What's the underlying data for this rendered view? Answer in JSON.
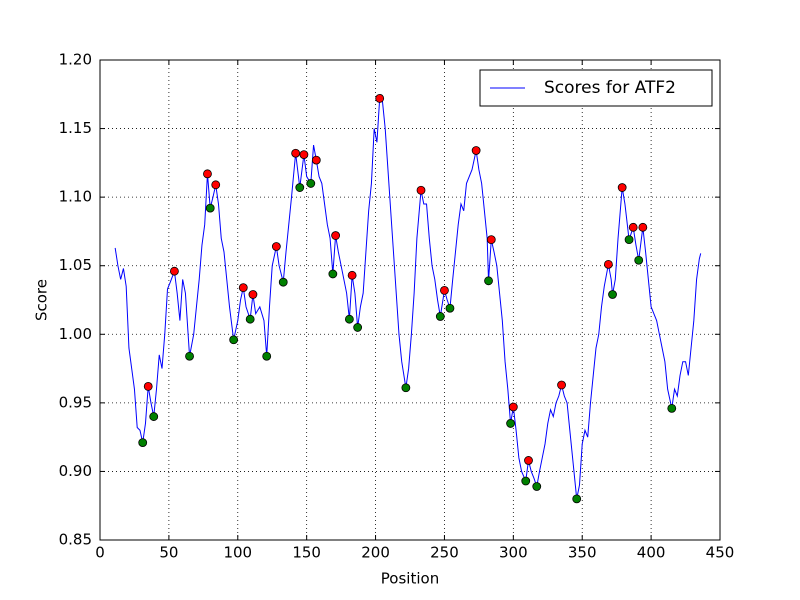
{
  "chart_data": {
    "type": "line",
    "x_label": "Position",
    "y_label": "Score",
    "xlim": [
      0,
      450
    ],
    "ylim": [
      0.85,
      1.2
    ],
    "xticks": [
      0,
      50,
      100,
      150,
      200,
      250,
      300,
      350,
      400,
      450
    ],
    "yticks": [
      0.85,
      {
        "value": 0.9,
        "label": "0.90"
      },
      0.95,
      {
        "value": 1.0,
        "label": "1.00"
      },
      1.05,
      {
        "value": 1.1,
        "label": "1.10"
      },
      1.15,
      {
        "value": 1.2,
        "label": "1.20"
      }
    ],
    "grid": true,
    "legend": "upper right",
    "series": [
      {
        "name": "Scores for ATF2",
        "color": "#0000ff",
        "style": "line",
        "x": [
          11,
          13,
          15,
          17,
          19,
          21,
          23,
          25,
          27,
          29,
          31,
          33,
          35,
          37,
          39,
          41,
          43,
          45,
          47,
          49,
          51,
          54,
          56,
          58,
          60,
          62,
          65,
          68,
          70,
          72,
          74,
          76,
          78,
          80,
          82,
          84,
          86,
          88,
          90,
          92,
          94,
          97,
          100,
          102,
          104,
          106,
          109,
          111,
          113,
          116,
          119,
          121,
          123,
          125,
          128,
          130,
          133,
          135,
          137,
          139,
          142,
          145,
          148,
          150,
          153,
          155,
          157,
          159,
          161,
          163,
          165,
          167,
          169,
          171,
          173,
          175,
          177,
          179,
          181,
          183,
          185,
          187,
          189,
          191,
          193,
          195,
          197,
          199,
          201,
          203,
          205,
          207,
          209,
          211,
          213,
          215,
          217,
          219,
          222,
          224,
          226,
          228,
          230,
          233,
          235,
          237,
          239,
          241,
          243,
          245,
          247,
          250,
          252,
          254,
          256,
          258,
          260,
          262,
          264,
          266,
          268,
          270,
          273,
          275,
          277,
          279,
          281,
          282,
          284,
          286,
          288,
          290,
          292,
          294,
          296,
          298,
          300,
          302,
          304,
          306,
          309,
          311,
          313,
          315,
          317,
          319,
          321,
          323,
          325,
          327,
          329,
          331,
          333,
          335,
          337,
          339,
          341,
          343,
          346,
          348,
          350,
          352,
          354,
          356,
          358,
          360,
          362,
          364,
          366,
          369,
          371,
          372,
          374,
          376,
          379,
          381,
          384,
          387,
          389,
          391,
          394,
          396,
          398,
          400,
          402,
          404,
          406,
          408,
          410,
          412,
          415,
          417,
          419,
          421,
          423,
          425,
          427,
          429,
          431,
          433,
          435,
          436
        ],
        "values": [
          1.063,
          1.05,
          1.04,
          1.048,
          1.035,
          0.99,
          0.975,
          0.96,
          0.932,
          0.93,
          0.921,
          0.935,
          0.962,
          0.95,
          0.94,
          0.96,
          0.985,
          0.975,
          1.0,
          1.033,
          1.038,
          1.046,
          1.03,
          1.01,
          1.04,
          1.03,
          0.984,
          1.0,
          1.02,
          1.04,
          1.065,
          1.08,
          1.117,
          1.092,
          1.1,
          1.109,
          1.095,
          1.07,
          1.06,
          1.04,
          1.02,
          0.996,
          1.01,
          1.025,
          1.034,
          1.02,
          1.011,
          1.029,
          1.015,
          1.02,
          1.01,
          0.984,
          1.02,
          1.05,
          1.064,
          1.05,
          1.038,
          1.06,
          1.08,
          1.1,
          1.132,
          1.107,
          1.131,
          1.115,
          1.11,
          1.138,
          1.127,
          1.115,
          1.11,
          1.095,
          1.08,
          1.07,
          1.044,
          1.072,
          1.06,
          1.05,
          1.04,
          1.03,
          1.011,
          1.043,
          1.03,
          1.005,
          1.02,
          1.03,
          1.06,
          1.09,
          1.11,
          1.15,
          1.14,
          1.172,
          1.17,
          1.15,
          1.12,
          1.09,
          1.06,
          1.03,
          1.0,
          0.98,
          0.961,
          0.975,
          1.0,
          1.03,
          1.07,
          1.105,
          1.095,
          1.095,
          1.07,
          1.05,
          1.04,
          1.025,
          1.013,
          1.032,
          1.025,
          1.019,
          1.04,
          1.06,
          1.08,
          1.095,
          1.09,
          1.11,
          1.115,
          1.12,
          1.134,
          1.12,
          1.11,
          1.09,
          1.07,
          1.039,
          1.069,
          1.06,
          1.05,
          1.03,
          1.01,
          0.98,
          0.96,
          0.935,
          0.947,
          0.93,
          0.91,
          0.9,
          0.893,
          0.908,
          0.9,
          0.895,
          0.889,
          0.9,
          0.91,
          0.92,
          0.935,
          0.945,
          0.94,
          0.95,
          0.955,
          0.963,
          0.955,
          0.95,
          0.93,
          0.91,
          0.88,
          0.89,
          0.92,
          0.93,
          0.925,
          0.95,
          0.97,
          0.99,
          1.0,
          1.02,
          1.035,
          1.051,
          1.04,
          1.029,
          1.04,
          1.07,
          1.107,
          1.095,
          1.069,
          1.078,
          1.065,
          1.054,
          1.078,
          1.06,
          1.04,
          1.02,
          1.015,
          1.01,
          1.0,
          0.99,
          0.98,
          0.96,
          0.946,
          0.96,
          0.955,
          0.97,
          0.98,
          0.98,
          0.97,
          0.99,
          1.01,
          1.04,
          1.055,
          1.059
        ]
      },
      {
        "color": "#ff0000",
        "style": "marker",
        "x": [
          35,
          54,
          78,
          84,
          104,
          111,
          128,
          142,
          148,
          157,
          171,
          183,
          203,
          233,
          250,
          273,
          284,
          300,
          311,
          335,
          369,
          379,
          387,
          394
        ],
        "values": [
          0.962,
          1.046,
          1.117,
          1.109,
          1.034,
          1.029,
          1.064,
          1.132,
          1.131,
          1.127,
          1.072,
          1.043,
          1.172,
          1.105,
          1.032,
          1.134,
          1.069,
          0.947,
          0.908,
          0.963,
          1.051,
          1.107,
          1.078,
          1.078
        ]
      },
      {
        "color": "#008000",
        "style": "marker",
        "x": [
          31,
          39,
          65,
          80,
          97,
          109,
          121,
          133,
          145,
          153,
          169,
          181,
          187,
          222,
          247,
          254,
          282,
          298,
          309,
          317,
          346,
          372,
          384,
          391,
          415
        ],
        "values": [
          0.921,
          0.94,
          0.984,
          1.092,
          0.996,
          1.011,
          0.984,
          1.038,
          1.107,
          1.11,
          1.044,
          1.011,
          1.005,
          0.961,
          1.013,
          1.019,
          1.039,
          0.935,
          0.893,
          0.889,
          0.88,
          1.029,
          1.069,
          1.054,
          0.946
        ]
      }
    ]
  }
}
